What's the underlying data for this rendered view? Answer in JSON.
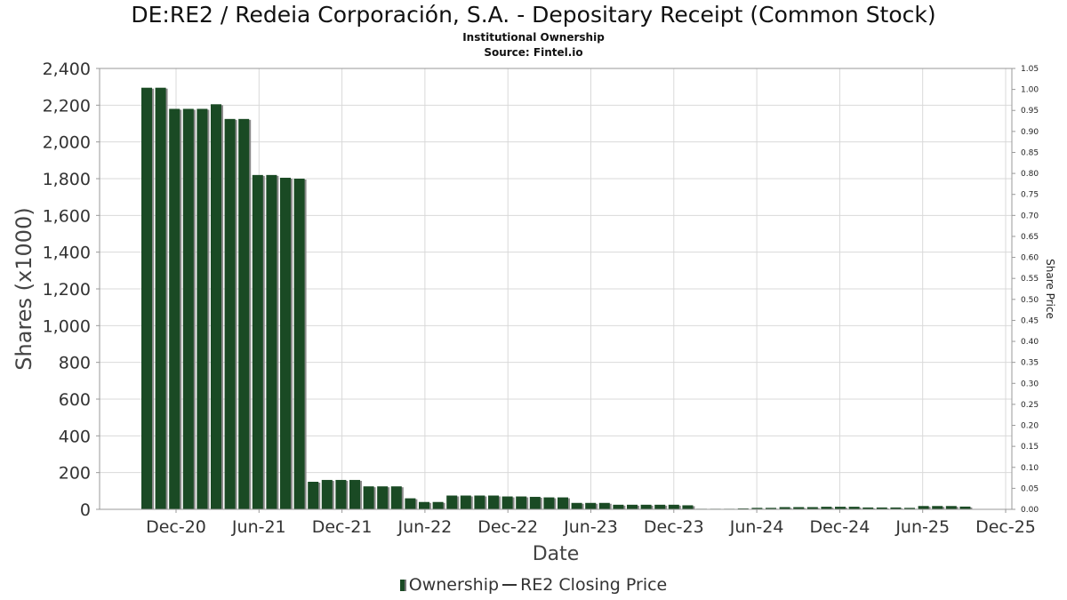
{
  "title": "DE:RE2 / Redeia Corporación, S.A. - Depositary Receipt (Common Stock)",
  "subtitle": "Institutional Ownership",
  "source": "Source: Fintel.io",
  "legend": {
    "ownership_label": "Ownership",
    "price_label": "RE2 Closing Price"
  },
  "colors": {
    "bar_fill": "#1a4a24",
    "bar_shadow": "#8a8a8a",
    "grid": "#d9d9d9"
  },
  "chart_data": {
    "type": "bar",
    "title": "DE:RE2 / Redeia Corporación, S.A. - Depositary Receipt (Common Stock)",
    "xlabel": "Date",
    "ylabel": "Shares (x1000)",
    "y2label": "Share Price",
    "ylim": [
      0,
      2400
    ],
    "y2lim": [
      0,
      1.05
    ],
    "grid": true,
    "legend_position": "bottom",
    "x_ticks": [
      "Dec-20",
      "Jun-21",
      "Dec-21",
      "Jun-22",
      "Dec-22",
      "Jun-23",
      "Dec-23",
      "Jun-24",
      "Dec-24",
      "Jun-25",
      "Dec-25"
    ],
    "y_ticks": [
      "0",
      "200",
      "400",
      "600",
      "800",
      "1,000",
      "1,200",
      "1,400",
      "1,600",
      "1,800",
      "2,000",
      "2,200",
      "2,400"
    ],
    "y2_ticks": [
      "0.00",
      "0.05",
      "0.10",
      "0.15",
      "0.20",
      "0.25",
      "0.30",
      "0.35",
      "0.40",
      "0.45",
      "0.50",
      "0.55",
      "0.60",
      "0.65",
      "0.70",
      "0.75",
      "0.80",
      "0.85",
      "0.90",
      "0.95",
      "1.00",
      "1.05"
    ],
    "series": [
      {
        "name": "Ownership",
        "values": [
          2295,
          2295,
          2180,
          2180,
          2180,
          2205,
          2125,
          2125,
          1820,
          1820,
          1805,
          1800,
          150,
          160,
          160,
          160,
          125,
          125,
          125,
          60,
          40,
          40,
          75,
          75,
          75,
          75,
          70,
          70,
          68,
          65,
          65,
          35,
          35,
          35,
          25,
          25,
          25,
          25,
          25,
          22,
          3,
          3,
          3,
          5,
          8,
          8,
          12,
          12,
          12,
          14,
          14,
          14,
          10,
          10,
          10,
          8,
          18,
          18,
          18,
          15
        ]
      }
    ]
  }
}
